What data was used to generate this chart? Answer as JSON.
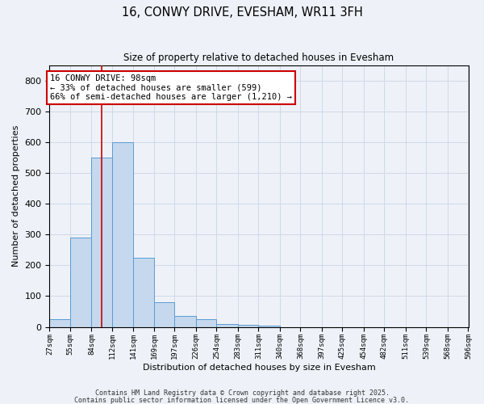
{
  "title": "16, CONWY DRIVE, EVESHAM, WR11 3FH",
  "subtitle": "Size of property relative to detached houses in Evesham",
  "xlabel": "Distribution of detached houses by size in Evesham",
  "ylabel": "Number of detached properties",
  "bin_edges": [
    27,
    55,
    84,
    112,
    141,
    169,
    197,
    226,
    254,
    283,
    311,
    340,
    368,
    397,
    425,
    454,
    482,
    511,
    539,
    568,
    596
  ],
  "bar_heights": [
    25,
    290,
    550,
    600,
    225,
    80,
    35,
    25,
    10,
    8,
    5,
    0,
    0,
    0,
    0,
    0,
    0,
    0,
    0,
    0
  ],
  "bar_color": "#c5d8ed",
  "bar_edge_color": "#5b9bd5",
  "grid_color": "#d0d8e8",
  "background_color": "#eef2f8",
  "vline_x": 98,
  "vline_color": "#cc0000",
  "annotation_text": "16 CONWY DRIVE: 98sqm\n← 33% of detached houses are smaller (599)\n66% of semi-detached houses are larger (1,210) →",
  "annotation_box_color": "#ffffff",
  "annotation_border_color": "#cc0000",
  "ylim": [
    0,
    850
  ],
  "yticks": [
    0,
    100,
    200,
    300,
    400,
    500,
    600,
    700,
    800
  ],
  "footnote1": "Contains HM Land Registry data © Crown copyright and database right 2025.",
  "footnote2": "Contains public sector information licensed under the Open Government Licence v3.0."
}
